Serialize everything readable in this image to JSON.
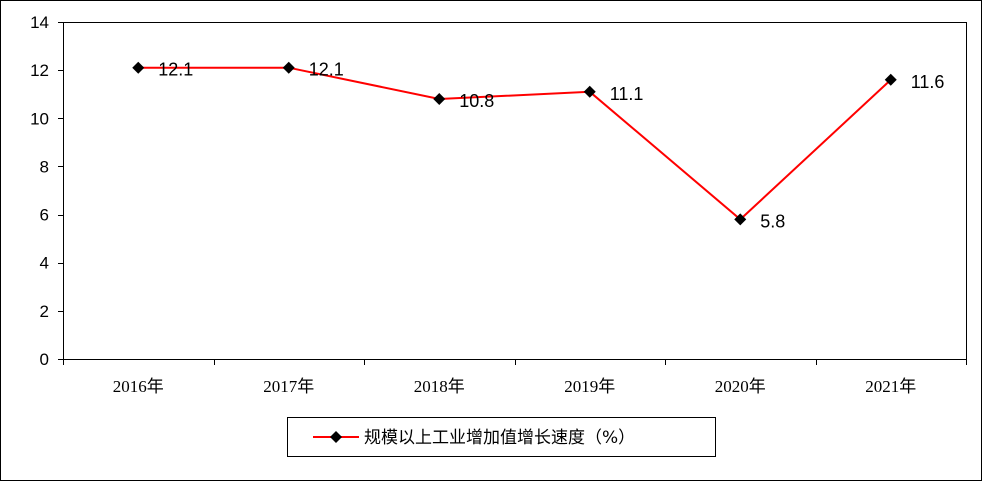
{
  "chart_data": {
    "type": "line",
    "categories": [
      "2016年",
      "2017年",
      "2018年",
      "2019年",
      "2020年",
      "2021年"
    ],
    "series": [
      {
        "name": "规模以上工业增加值增长速度（%）",
        "values": [
          12.1,
          12.1,
          10.8,
          11.1,
          5.8,
          11.6
        ],
        "data_labels": [
          "12.1",
          "12.1",
          "10.8",
          "11.1",
          "5.8",
          "11.6"
        ],
        "color": "#ff0000",
        "marker": "diamond",
        "marker_color": "#000000"
      }
    ],
    "ylim": [
      0,
      14
    ],
    "y_ticks": [
      "0",
      "2",
      "4",
      "6",
      "8",
      "10",
      "12",
      "14"
    ],
    "y_tick_values": [
      0,
      2,
      4,
      6,
      8,
      10,
      12,
      14
    ],
    "grid": false,
    "legend_position": "bottom-center",
    "title": "",
    "xlabel": "",
    "ylabel": ""
  }
}
